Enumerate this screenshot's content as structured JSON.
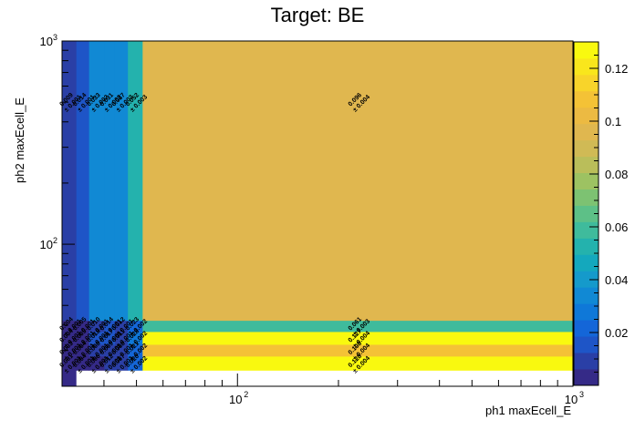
{
  "chart_data": {
    "type": "heatmap",
    "title": "Target: BE",
    "xlabel": "ph1 maxEcell_E",
    "ylabel": "ph2 maxEcell_E",
    "x_scale": "log",
    "y_scale": "log",
    "xlim": [
      30,
      1000
    ],
    "ylim": [
      20,
      1000
    ],
    "x_tick_labels": [
      {
        "value": 100,
        "base": "10",
        "exp": "2"
      },
      {
        "value": 1000,
        "base": "10",
        "exp": "3"
      }
    ],
    "y_tick_labels": [
      {
        "value": 100,
        "base": "10",
        "exp": "2"
      },
      {
        "value": 1000,
        "base": "10",
        "exp": "3"
      }
    ],
    "colorbar": {
      "min": 0,
      "max": 0.13,
      "tick_labels": [
        "0.02",
        "0.04",
        "0.06",
        "0.08",
        "0.1",
        "0.12"
      ],
      "tick_values": [
        0.02,
        0.04,
        0.06,
        0.08,
        0.1,
        0.12
      ]
    },
    "x_edges": [
      30,
      33,
      36,
      40,
      43,
      47,
      52,
      1000
    ],
    "y_edges": [
      20,
      24,
      28,
      32,
      37,
      42,
      1000
    ],
    "cells": [
      {
        "xi": 6,
        "yi": 5,
        "value": 0.096,
        "label": "0.096",
        "error": "± 0.004"
      },
      {
        "xi": 6,
        "yi": 4,
        "value": 0.061,
        "label": "0.061",
        "error": "± 0.003"
      },
      {
        "xi": 6,
        "yi": 3,
        "value": 0.127,
        "label": "0.127",
        "error": "± 0.004"
      },
      {
        "xi": 6,
        "yi": 2,
        "value": 0.108,
        "label": "0.108",
        "error": "± 0.004"
      },
      {
        "xi": 6,
        "yi": 1,
        "value": 0.128,
        "label": "0.128",
        "error": "± 0.004"
      },
      {
        "xi": 5,
        "yi": 5,
        "value": 0.052,
        "label": "0.052",
        "error": "± 0.003"
      },
      {
        "xi": 5,
        "yi": 4,
        "value": 0.023,
        "label": "0.023",
        "error": "± 0.002"
      },
      {
        "xi": 5,
        "yi": 3,
        "value": 0.028,
        "label": "0.028",
        "error": "± 0.002"
      },
      {
        "xi": 5,
        "yi": 2,
        "value": 0.021,
        "label": "0.021",
        "error": "± 0.002"
      },
      {
        "xi": 5,
        "yi": 1,
        "value": 0.02,
        "label": "0.020",
        "error": "± 0.002"
      },
      {
        "xi": 4,
        "yi": 5,
        "value": 0.037,
        "label": "0.037",
        "error": "± 0.002"
      },
      {
        "xi": 4,
        "yi": 4,
        "value": 0.012,
        "label": "0.012",
        "error": "± 0.001"
      },
      {
        "xi": 4,
        "yi": 3,
        "value": 0.011,
        "label": "0.011",
        "error": "± 0.001"
      },
      {
        "xi": 4,
        "yi": 2,
        "value": 0.008,
        "label": "0.008",
        "error": "± 0.001"
      },
      {
        "xi": 4,
        "yi": 1,
        "value": 0.007,
        "label": "0.007",
        "error": "± 0.001"
      },
      {
        "xi": 3,
        "yi": 5,
        "value": 0.031,
        "label": "0.031",
        "error": "± 0.002"
      },
      {
        "xi": 3,
        "yi": 4,
        "value": 0.014,
        "label": "0.014",
        "error": "± 0.001"
      },
      {
        "xi": 3,
        "yi": 3,
        "value": 0.017,
        "label": "0.017",
        "error": "± 0.001"
      },
      {
        "xi": 3,
        "yi": 2,
        "value": 0.009,
        "label": "0.009",
        "error": "± 0.001"
      },
      {
        "xi": 3,
        "yi": 1,
        "value": 0.012,
        "label": "0.012",
        "error": "± 0.001"
      },
      {
        "xi": 2,
        "yi": 5,
        "value": 0.033,
        "label": "0.033",
        "error": "± 0.002"
      },
      {
        "xi": 2,
        "yi": 4,
        "value": 0.01,
        "label": "0.010",
        "error": "± 0.001"
      },
      {
        "xi": 2,
        "yi": 3,
        "value": 0.018,
        "label": "0.018",
        "error": "± 0.001"
      },
      {
        "xi": 2,
        "yi": 2,
        "value": 0.008,
        "label": "0.008",
        "error": "± 0.001"
      },
      {
        "xi": 2,
        "yi": 1,
        "value": 0.006,
        "label": "0.006",
        "error": "± 0.001"
      },
      {
        "xi": 1,
        "yi": 5,
        "value": 0.014,
        "label": "0.014",
        "error": "± 0.001"
      },
      {
        "xi": 1,
        "yi": 4,
        "value": 0.005,
        "label": "0.005",
        "error": "± 0.001"
      },
      {
        "xi": 1,
        "yi": 3,
        "value": 0.005,
        "label": "0.005",
        "error": "± 0.001"
      },
      {
        "xi": 1,
        "yi": 2,
        "value": 0.004,
        "label": "0.004",
        "error": "± 0.001"
      },
      {
        "xi": 1,
        "yi": 1,
        "value": 0.004,
        "label": "0.004",
        "error": "± 0.001"
      },
      {
        "xi": 0,
        "yi": 5,
        "value": 0.009,
        "label": "0.009",
        "error": "± 0.001"
      },
      {
        "xi": 0,
        "yi": 4,
        "value": 0.004,
        "label": "0.004",
        "error": "± 0.001"
      },
      {
        "xi": 0,
        "yi": 3,
        "value": 0.004,
        "label": "0.004",
        "error": "± 0.001"
      },
      {
        "xi": 0,
        "yi": 2,
        "value": 0.003,
        "label": "0.003",
        "error": "± 0.001"
      },
      {
        "xi": 0,
        "yi": 1,
        "value": 0.001,
        "label": "0.001",
        "error": "± 0.001"
      },
      {
        "xi": 0,
        "yi": 0,
        "value": 0.0,
        "label": "",
        "error": ""
      }
    ]
  }
}
